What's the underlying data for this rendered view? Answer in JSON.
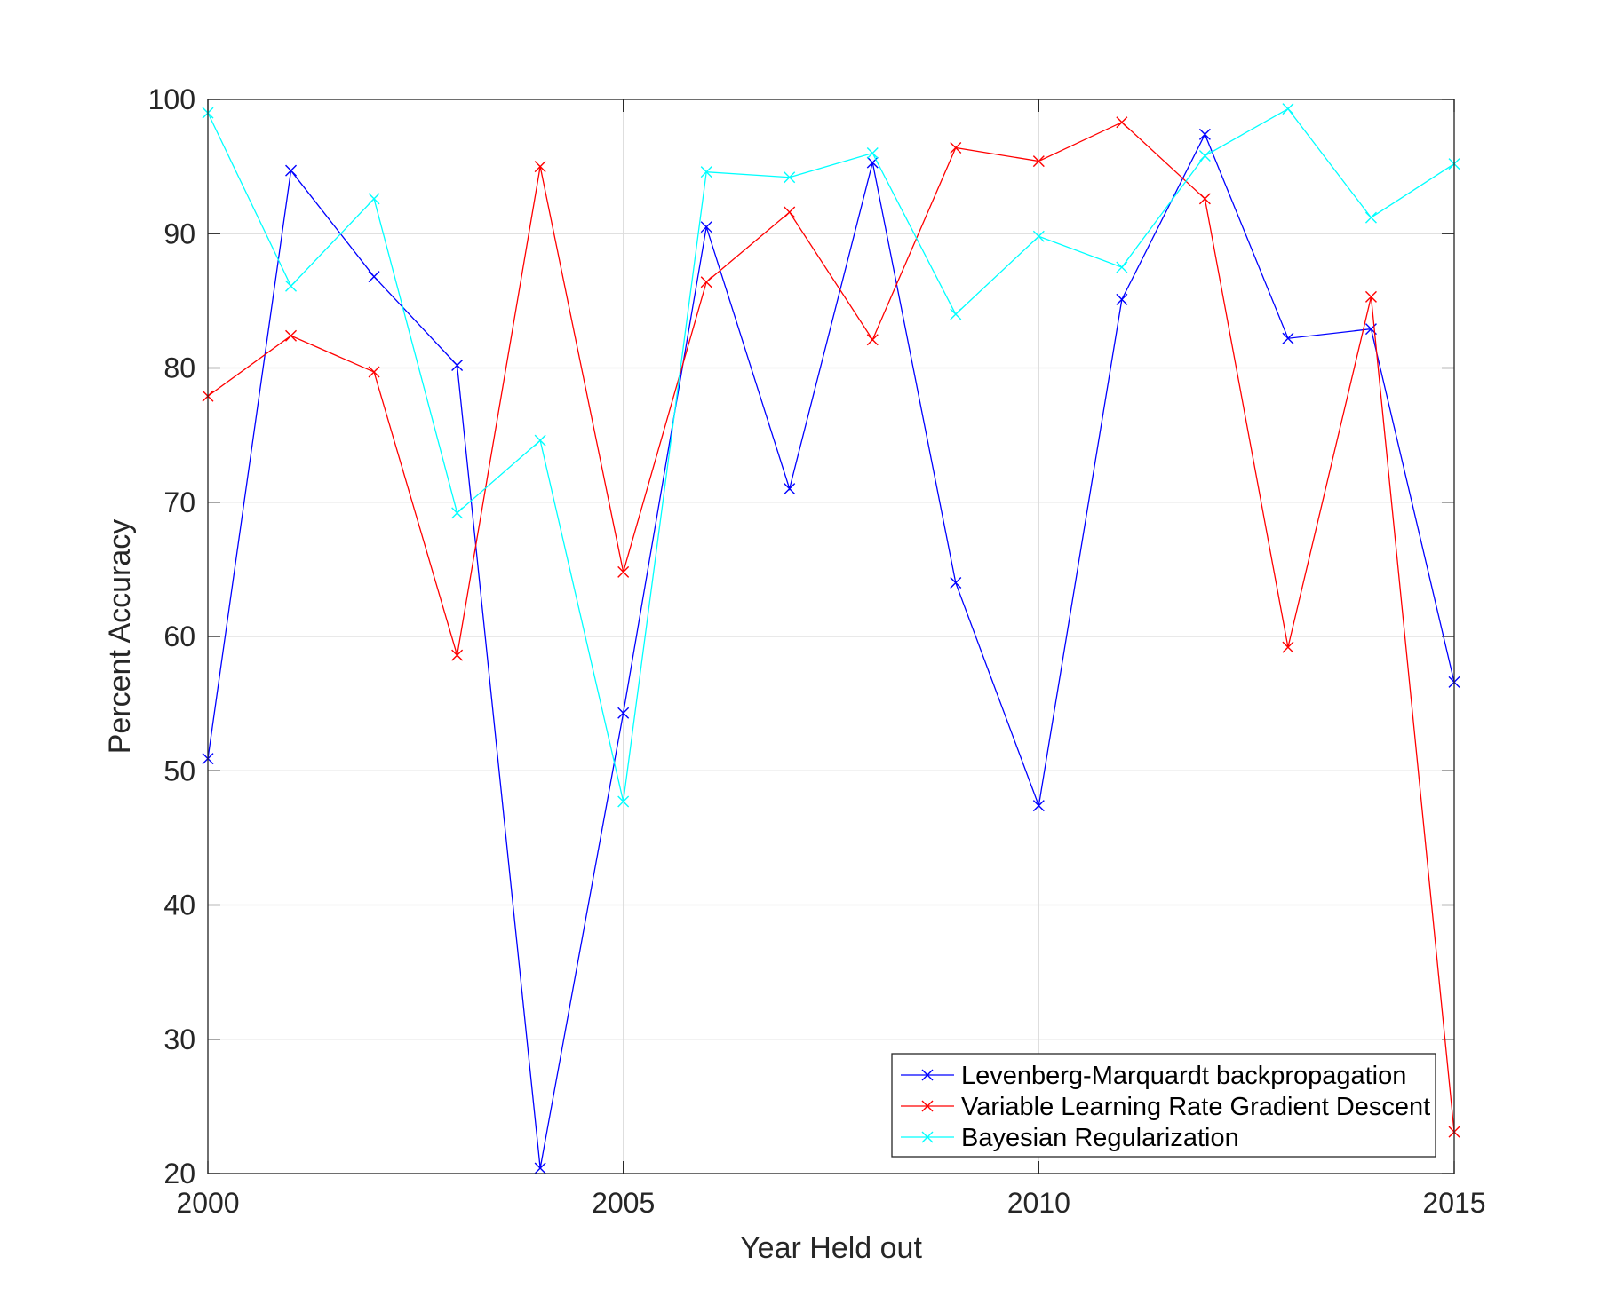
{
  "chart_data": {
    "type": "line",
    "title": "",
    "xlabel": "Year Held out",
    "ylabel": "Percent Accuracy",
    "xlim": [
      2000,
      2015
    ],
    "ylim": [
      20,
      100
    ],
    "xticks": [
      2000,
      2005,
      2010,
      2015
    ],
    "yticks": [
      20,
      30,
      40,
      50,
      60,
      70,
      80,
      90,
      100
    ],
    "grid": true,
    "legend_position": "bottom-right",
    "x": [
      2000,
      2001,
      2002,
      2003,
      2004,
      2005,
      2006,
      2007,
      2008,
      2009,
      2010,
      2011,
      2012,
      2013,
      2014,
      2015
    ],
    "series": [
      {
        "name": "Levenberg-Marquardt backpropagation",
        "color": "#0000ff",
        "marker": "x",
        "values": [
          50.9,
          94.7,
          86.8,
          80.2,
          20.4,
          54.3,
          90.5,
          71.0,
          95.3,
          64.0,
          47.4,
          85.1,
          97.4,
          82.2,
          82.9,
          56.6
        ]
      },
      {
        "name": "Variable Learning Rate Gradient Descent",
        "color": "#ff0000",
        "marker": "x",
        "values": [
          77.9,
          82.4,
          79.7,
          58.6,
          95.0,
          64.8,
          86.4,
          91.6,
          82.1,
          96.4,
          95.4,
          98.3,
          92.6,
          59.2,
          85.3,
          23.1
        ]
      },
      {
        "name": "Bayesian Regularization",
        "color": "#00ffff",
        "marker": "x",
        "values": [
          99.0,
          86.1,
          92.6,
          69.2,
          74.6,
          47.7,
          94.6,
          94.2,
          96.0,
          84.0,
          89.8,
          87.5,
          95.8,
          99.3,
          91.2,
          95.2
        ]
      }
    ]
  }
}
